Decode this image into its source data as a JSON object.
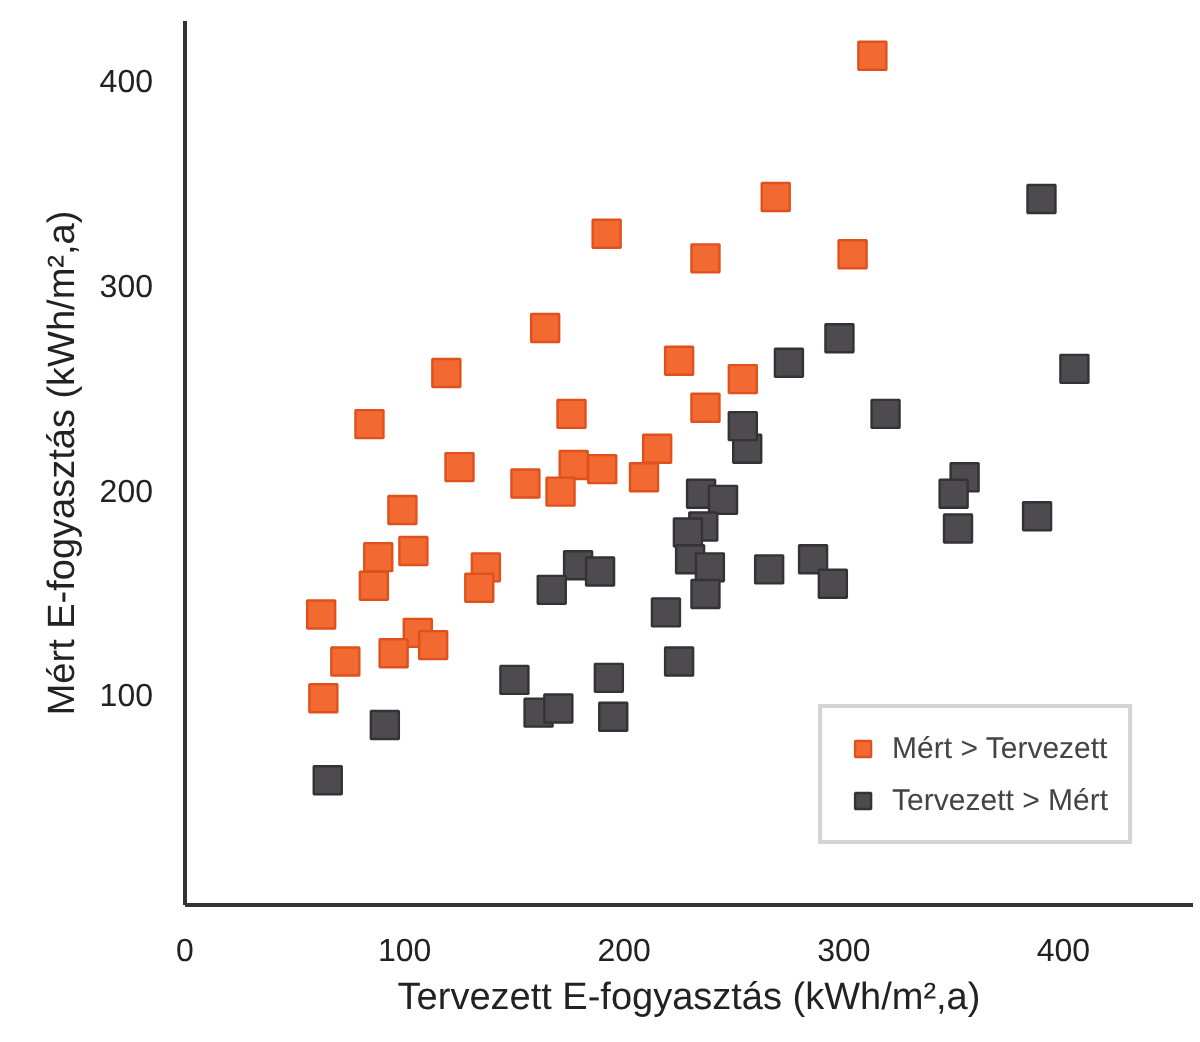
{
  "chart_data": {
    "type": "scatter",
    "xlabel": "Tervezett E-fogyasztás (kWh/m²,a)",
    "ylabel": "Mért E-fogyasztás (kWh/m²,a)",
    "xlim": [
      0,
      459
    ],
    "ylim": [
      -3,
      429
    ],
    "xticks": [
      0,
      100,
      200,
      300,
      400
    ],
    "yticks": [
      100,
      200,
      300,
      400
    ],
    "grid": false,
    "legend": "bottom right",
    "marker": "square",
    "series": [
      {
        "name": "Mért > Tervezett",
        "color": "#f26a32",
        "x": [
          192,
          164,
          119,
          176,
          84,
          313,
          269,
          237,
          304,
          225,
          254,
          237,
          215,
          125,
          155,
          177,
          171,
          190,
          99,
          88,
          104,
          137,
          86,
          134,
          62,
          106,
          113,
          73,
          95,
          63,
          209
        ],
        "values": [
          325,
          279,
          257,
          237,
          232,
          412,
          343,
          313,
          315,
          263,
          254,
          240,
          220,
          211,
          203,
          212,
          199,
          210,
          190,
          167,
          170,
          162,
          153,
          152,
          139,
          130,
          124,
          116,
          120,
          98,
          206
        ]
      },
      {
        "name": "Tervezett > Mért",
        "color": "#4d4b50",
        "x": [
          390,
          298,
          275,
          405,
          319,
          256,
          254,
          235,
          245,
          236,
          229,
          230,
          239,
          237,
          219,
          225,
          179,
          189,
          167,
          150,
          161,
          170,
          193,
          195,
          91,
          65,
          266,
          286,
          295,
          355,
          350,
          352,
          388
        ],
        "values": [
          342,
          274,
          262,
          259,
          237,
          220,
          231,
          198,
          195,
          182,
          179,
          166,
          162,
          149,
          140,
          116,
          163,
          160,
          151,
          107,
          91,
          93,
          108,
          89,
          85,
          58,
          161,
          166,
          154,
          206,
          198,
          181,
          187
        ]
      }
    ]
  }
}
